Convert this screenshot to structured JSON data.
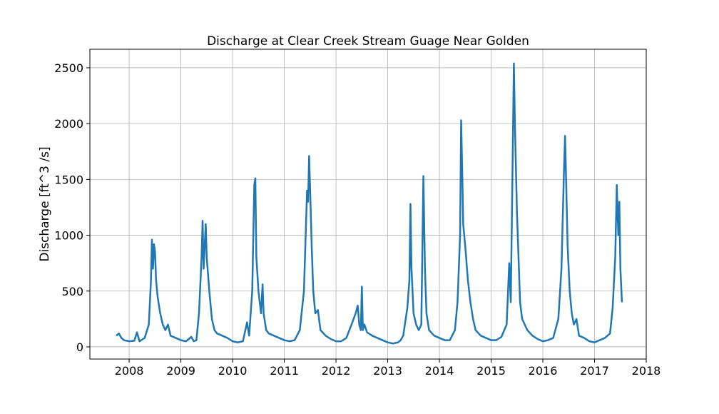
{
  "chart_data": {
    "type": "line",
    "title": "Discharge at Clear Creek Stream Guage Near Golden",
    "y_label": "Discharge  [ft^3 /s]",
    "grid": true,
    "xlim": [
      2007.24,
      2018.0
    ],
    "xticks": [
      2008,
      2009,
      2010,
      2011,
      2012,
      2013,
      2014,
      2015,
      2016,
      2017,
      2018
    ],
    "ylim": [
      -109,
      2666
    ],
    "yticks": [
      0,
      500,
      1000,
      1500,
      2000,
      2500
    ],
    "x": [
      2007.75,
      2007.8,
      2007.85,
      2007.9,
      2008.0,
      2008.1,
      2008.15,
      2008.2,
      2008.3,
      2008.38,
      2008.42,
      2008.44,
      2008.46,
      2008.48,
      2008.5,
      2008.52,
      2008.55,
      2008.6,
      2008.65,
      2008.7,
      2008.75,
      2008.8,
      2008.9,
      2009.0,
      2009.1,
      2009.2,
      2009.25,
      2009.3,
      2009.35,
      2009.4,
      2009.42,
      2009.44,
      2009.46,
      2009.48,
      2009.5,
      2009.55,
      2009.6,
      2009.65,
      2009.7,
      2009.8,
      2009.9,
      2010.0,
      2010.1,
      2010.2,
      2010.28,
      2010.32,
      2010.38,
      2010.42,
      2010.44,
      2010.46,
      2010.5,
      2010.55,
      2010.58,
      2010.6,
      2010.65,
      2010.7,
      2010.8,
      2010.9,
      2011.0,
      2011.1,
      2011.2,
      2011.3,
      2011.38,
      2011.42,
      2011.44,
      2011.46,
      2011.48,
      2011.5,
      2011.53,
      2011.56,
      2011.6,
      2011.65,
      2011.7,
      2011.8,
      2011.9,
      2012.0,
      2012.1,
      2012.2,
      2012.3,
      2012.38,
      2012.42,
      2012.45,
      2012.48,
      2012.5,
      2012.52,
      2012.55,
      2012.6,
      2012.7,
      2012.8,
      2012.9,
      2013.0,
      2013.1,
      2013.2,
      2013.25,
      2013.3,
      2013.38,
      2013.42,
      2013.44,
      2013.46,
      2013.5,
      2013.55,
      2013.6,
      2013.65,
      2013.69,
      2013.72,
      2013.75,
      2013.8,
      2013.9,
      2014.0,
      2014.1,
      2014.2,
      2014.3,
      2014.35,
      2014.4,
      2014.42,
      2014.44,
      2014.46,
      2014.5,
      2014.55,
      2014.6,
      2014.65,
      2014.7,
      2014.8,
      2014.9,
      2015.0,
      2015.1,
      2015.2,
      2015.3,
      2015.35,
      2015.38,
      2015.42,
      2015.44,
      2015.46,
      2015.5,
      2015.53,
      2015.56,
      2015.6,
      2015.7,
      2015.8,
      2015.9,
      2016.0,
      2016.1,
      2016.2,
      2016.3,
      2016.36,
      2016.41,
      2016.43,
      2016.45,
      2016.48,
      2016.52,
      2016.56,
      2016.6,
      2016.65,
      2016.7,
      2016.8,
      2016.9,
      2017.0,
      2017.1,
      2017.2,
      2017.3,
      2017.35,
      2017.4,
      2017.43,
      2017.46,
      2017.48,
      2017.5,
      2017.53
    ],
    "series": [
      {
        "color": "#1f77b4",
        "values": [
          100,
          120,
          80,
          60,
          50,
          55,
          130,
          50,
          80,
          200,
          580,
          960,
          700,
          920,
          850,
          600,
          450,
          300,
          200,
          150,
          200,
          100,
          80,
          60,
          50,
          90,
          50,
          60,
          300,
          800,
          1130,
          700,
          900,
          1100,
          800,
          500,
          250,
          150,
          120,
          100,
          80,
          50,
          40,
          50,
          220,
          100,
          500,
          1450,
          1510,
          800,
          500,
          300,
          560,
          300,
          150,
          120,
          100,
          80,
          60,
          50,
          60,
          150,
          500,
          1100,
          1400,
          1300,
          1710,
          1400,
          900,
          500,
          300,
          330,
          150,
          100,
          70,
          50,
          50,
          80,
          200,
          300,
          370,
          200,
          150,
          540,
          150,
          200,
          130,
          100,
          80,
          60,
          40,
          30,
          40,
          60,
          100,
          350,
          600,
          1280,
          700,
          300,
          200,
          150,
          200,
          1530,
          700,
          300,
          150,
          100,
          80,
          60,
          60,
          150,
          400,
          1000,
          2030,
          1600,
          1100,
          900,
          600,
          400,
          250,
          150,
          100,
          80,
          60,
          60,
          90,
          200,
          750,
          400,
          1800,
          2540,
          2000,
          1200,
          800,
          400,
          250,
          150,
          100,
          70,
          50,
          60,
          80,
          250,
          700,
          1600,
          1890,
          1500,
          900,
          500,
          300,
          200,
          250,
          100,
          80,
          50,
          40,
          60,
          80,
          120,
          350,
          800,
          1450,
          1000,
          1300,
          700,
          400
        ]
      }
    ]
  }
}
